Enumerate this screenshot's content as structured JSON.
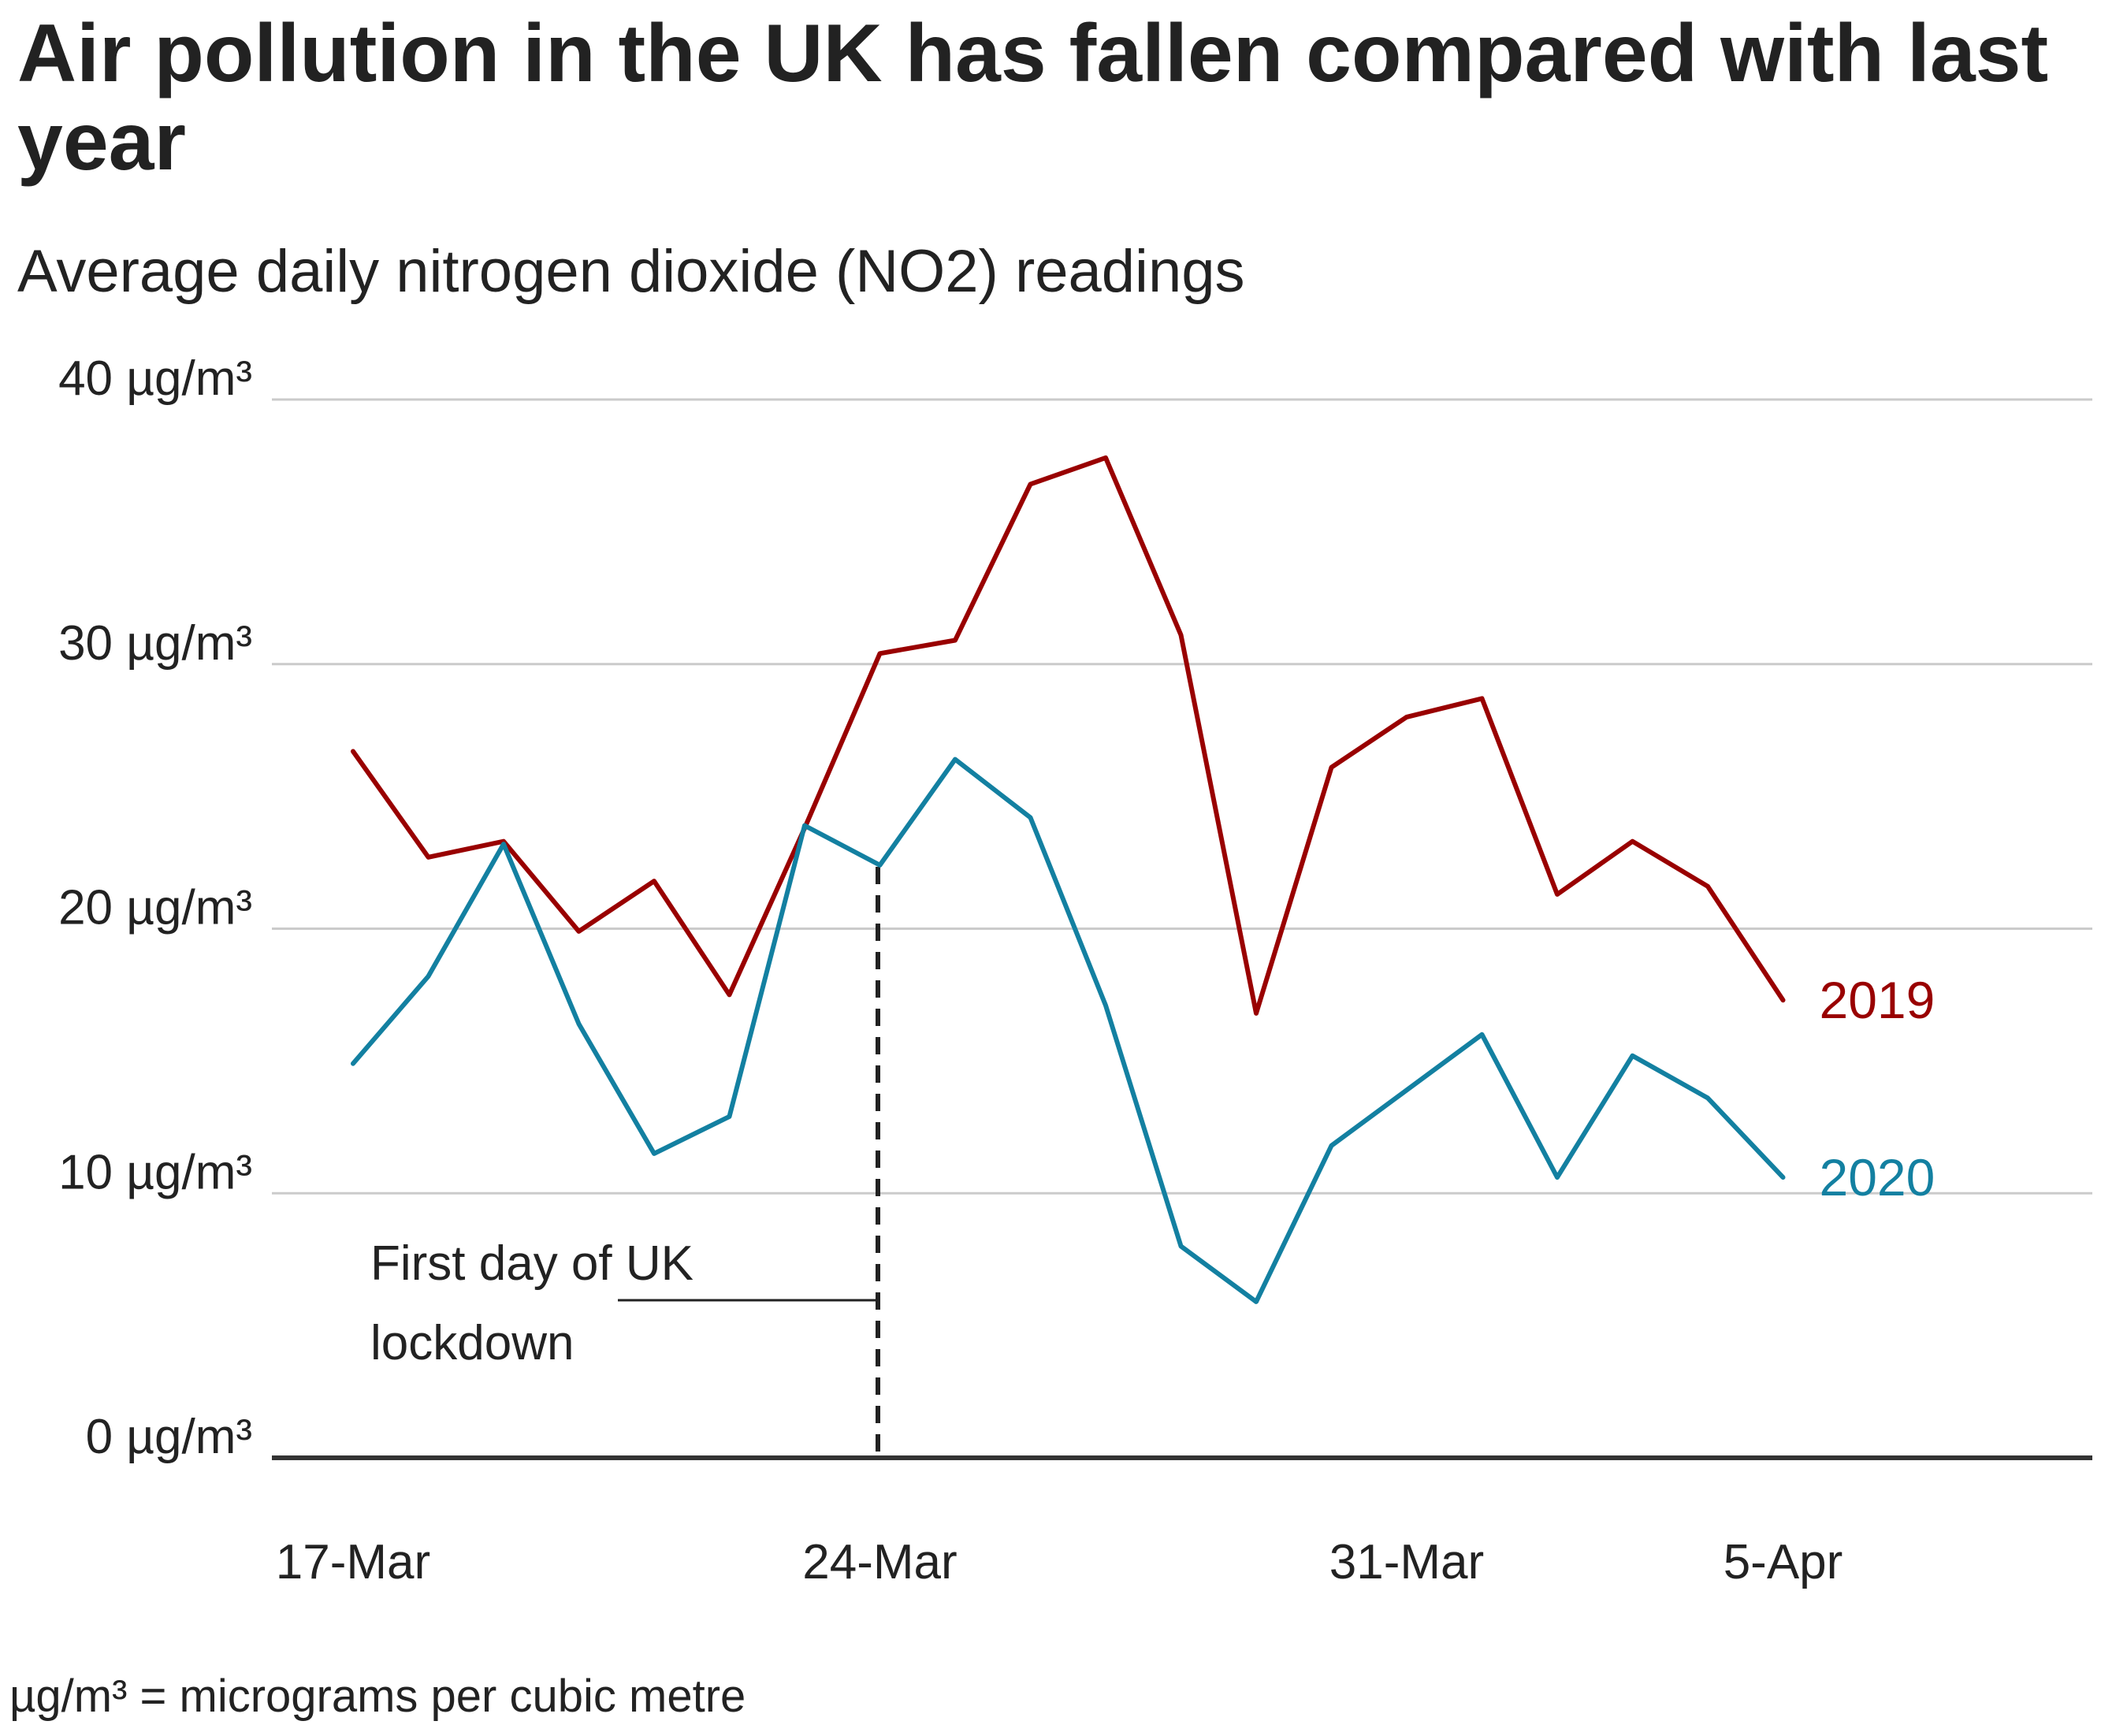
{
  "chart_data": {
    "type": "line",
    "title": "Air pollution in the UK has fallen compared with last year",
    "subtitle": "Average daily nitrogen dioxide (NO2) readings",
    "x": [
      "17-Mar",
      "18-Mar",
      "19-Mar",
      "20-Mar",
      "21-Mar",
      "22-Mar",
      "23-Mar",
      "24-Mar",
      "25-Mar",
      "26-Mar",
      "27-Mar",
      "28-Mar",
      "29-Mar",
      "30-Mar",
      "31-Mar",
      "1-Apr",
      "2-Apr",
      "3-Apr",
      "4-Apr",
      "5-Apr"
    ],
    "x_tick_labels": [
      "17-Mar",
      "24-Mar",
      "31-Mar",
      "5-Apr"
    ],
    "y_ticks": [
      0,
      10,
      20,
      30,
      40
    ],
    "y_tick_labels": [
      "0 µg/m³",
      "10 µg/m³",
      "20 µg/m³",
      "30 µg/m³",
      "40 µg/m³"
    ],
    "ylim": [
      0,
      40
    ],
    "grid": "horizontal",
    "series": [
      {
        "name": "2019",
        "color": "#990000",
        "values": [
          26.7,
          22.7,
          23.3,
          19.9,
          21.8,
          17.5,
          23.8,
          30.4,
          30.9,
          36.8,
          37.8,
          31.1,
          16.8,
          26.1,
          28.0,
          28.7,
          21.3,
          23.3,
          21.6,
          17.3
        ]
      },
      {
        "name": "2020",
        "color": "#1380A1",
        "values": [
          14.9,
          18.2,
          23.2,
          16.4,
          11.5,
          12.9,
          23.9,
          22.4,
          26.4,
          24.2,
          17.1,
          8.0,
          5.9,
          11.8,
          13.9,
          16.0,
          10.6,
          15.2,
          13.6,
          10.6
        ]
      }
    ],
    "annotation": {
      "text_line1": "First day of UK",
      "text_line2": "lockdown",
      "x": "24-Mar"
    },
    "footnote": "µg/m³ = micrograms per cubic metre"
  }
}
